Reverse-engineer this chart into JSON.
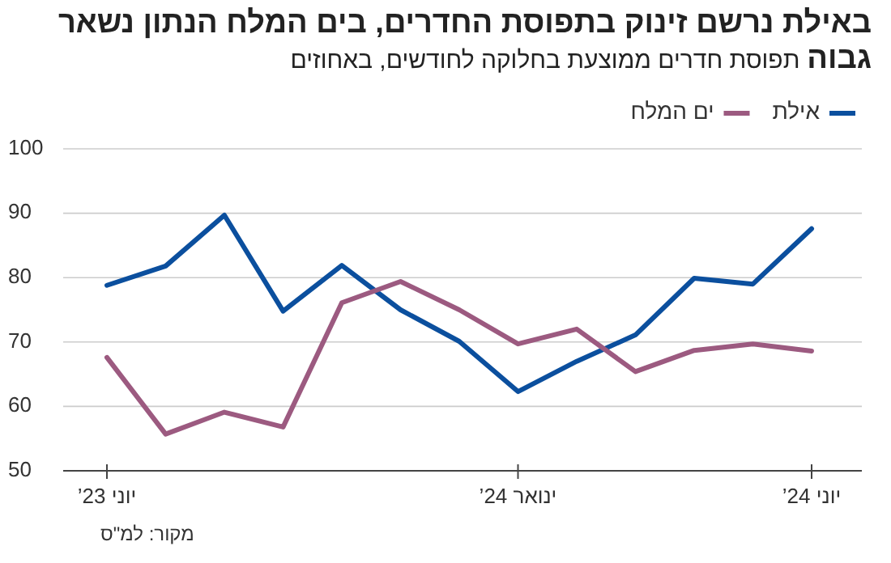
{
  "chart_data": {
    "type": "line",
    "title": "באילת נרשם זינוק בתפוסת החדרים, בים המלח הנתון נשאר גבוה",
    "subtitle": "תפוסת חדרים ממוצעת בחלוקה לחודשים, באחוזים",
    "categories": [
      "יוני 23’",
      null,
      null,
      null,
      null,
      null,
      null,
      "ינואר 24’",
      null,
      null,
      null,
      null,
      "יוני 24’"
    ],
    "series": [
      {
        "name": "אילת",
        "color": "#0b4f9e",
        "values": [
          78.8,
          81.8,
          89.7,
          74.8,
          81.9,
          75.0,
          70.1,
          62.3,
          67.0,
          71.1,
          79.9,
          79.0,
          87.6
        ]
      },
      {
        "name": "ים המלח",
        "color": "#9c5a80",
        "values": [
          67.6,
          55.7,
          59.1,
          56.8,
          76.1,
          79.4,
          75.0,
          69.7,
          72.0,
          65.4,
          68.7,
          69.7,
          68.6
        ]
      }
    ],
    "ylim": [
      50,
      100
    ],
    "yticks": [
      50,
      60,
      70,
      80,
      90,
      100
    ],
    "grid": "y",
    "legend": "top right",
    "annotations": [
      "מקור: למ\"ס"
    ]
  }
}
